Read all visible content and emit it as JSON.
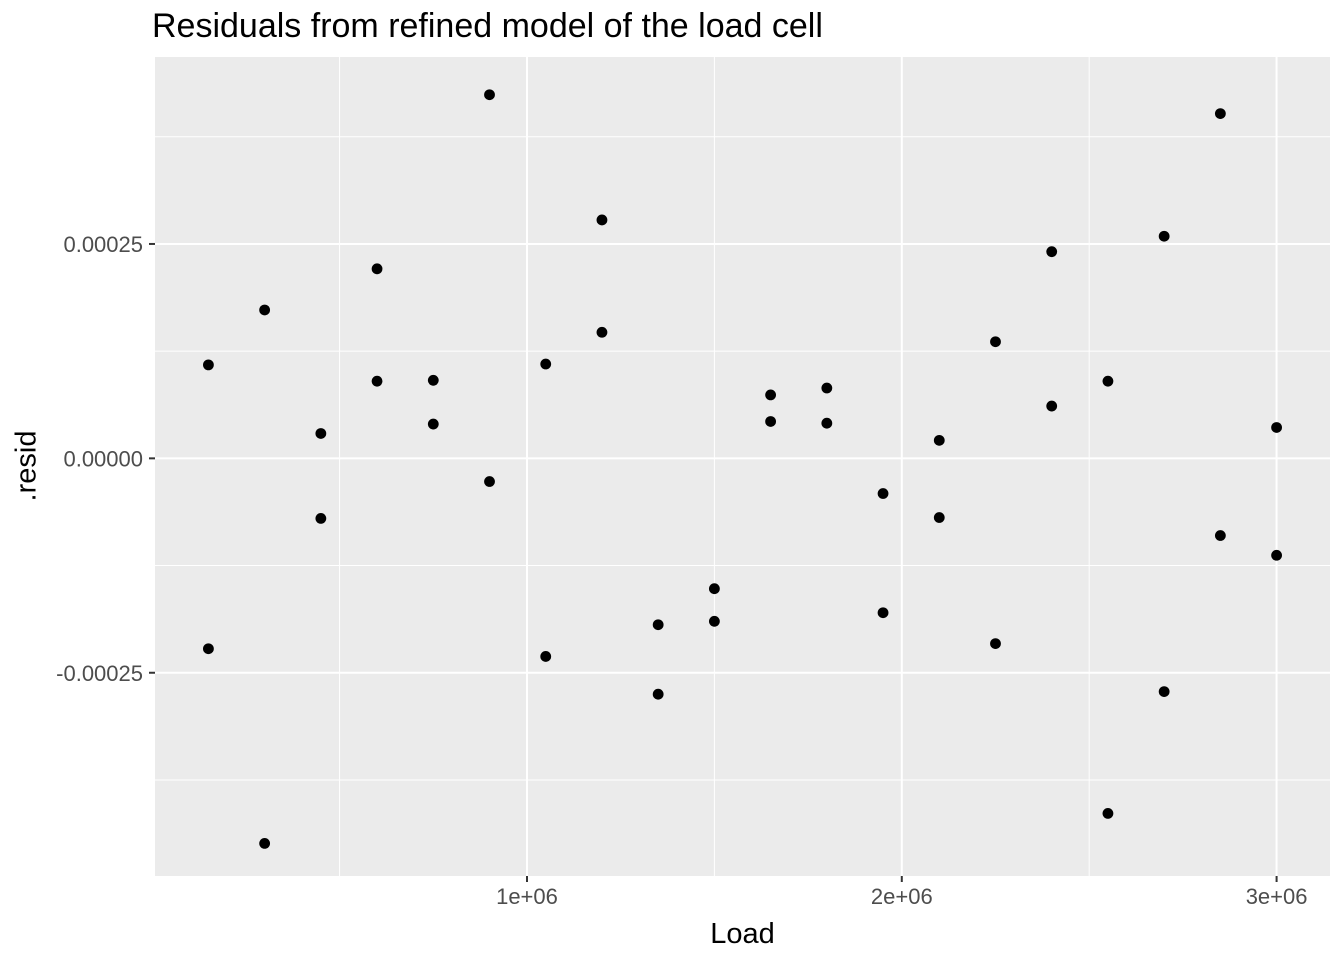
{
  "chart_data": {
    "type": "scatter",
    "title": "Residuals from refined model of the load cell",
    "xlabel": "Load",
    "ylabel": ".resid",
    "legend": "none",
    "grid": "white major and minor gridlines on gray panel",
    "xlim": [
      7500,
      3142500
    ],
    "ylim": [
      -0.000487,
      0.000468
    ],
    "x_major_ticks": {
      "values": [
        1000000,
        2000000,
        3000000
      ],
      "labels": [
        "1e+06",
        "2e+06",
        "3e+06"
      ]
    },
    "y_major_ticks": {
      "values": [
        0.00025,
        0,
        -0.00025
      ],
      "labels": [
        "0.00025",
        "0.00000",
        "-0.00025"
      ]
    },
    "x_minor_gridlines": [
      500000,
      1500000,
      2500000
    ],
    "y_minor_gridlines": [
      0.000375,
      0.000125,
      -0.000125,
      -0.000375
    ],
    "points": [
      [
        150000,
        0.000109
      ],
      [
        150000,
        -0.000222
      ],
      [
        300000,
        0.000173
      ],
      [
        300000,
        -0.000449
      ],
      [
        450000,
        2.9e-05
      ],
      [
        450000,
        -7e-05
      ],
      [
        600000,
        0.000221
      ],
      [
        600000,
        9e-05
      ],
      [
        750000,
        9.1e-05
      ],
      [
        750000,
        4e-05
      ],
      [
        900000,
        0.000424
      ],
      [
        900000,
        -2.7e-05
      ],
      [
        1050000,
        0.00011
      ],
      [
        1050000,
        -0.000231
      ],
      [
        1200000,
        0.000278
      ],
      [
        1200000,
        0.000147
      ],
      [
        1350000,
        -0.000194
      ],
      [
        1350000,
        -0.000275
      ],
      [
        1500000,
        -0.000152
      ],
      [
        1500000,
        -0.00019
      ],
      [
        1650000,
        7.4e-05
      ],
      [
        1650000,
        4.3e-05
      ],
      [
        1800000,
        8.2e-05
      ],
      [
        1800000,
        4.1e-05
      ],
      [
        1950000,
        -4.1e-05
      ],
      [
        1950000,
        -0.00018
      ],
      [
        2100000,
        2.1e-05
      ],
      [
        2100000,
        -6.9e-05
      ],
      [
        2250000,
        0.000136
      ],
      [
        2250000,
        -0.000216
      ],
      [
        2400000,
        0.000241
      ],
      [
        2400000,
        6.1e-05
      ],
      [
        2550000,
        9e-05
      ],
      [
        2550000,
        -0.000414
      ],
      [
        2700000,
        0.000259
      ],
      [
        2700000,
        -0.000272
      ],
      [
        2850000,
        0.000402
      ],
      [
        2850000,
        -9e-05
      ],
      [
        3000000,
        3.6e-05
      ],
      [
        3000000,
        -0.000113
      ]
    ]
  },
  "style": {
    "panel_background": "#EBEBEB",
    "gridline_color": "#FFFFFF",
    "point_color": "#000000",
    "axis_text_color": "#4D4D4D",
    "title_color": "#000000",
    "tick_mark_color": "#333333"
  }
}
